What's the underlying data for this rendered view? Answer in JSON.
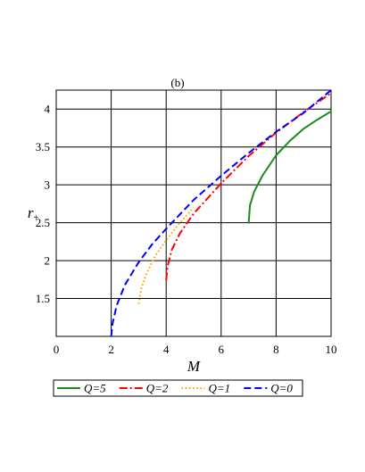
{
  "chart_data": {
    "type": "line",
    "title": "(b)",
    "xlabel": "M",
    "ylabel": "r+",
    "xlim": [
      0,
      10
    ],
    "ylim": [
      1,
      4.25
    ],
    "x_ticks": [
      "0",
      "2",
      "4",
      "6",
      "8",
      "10"
    ],
    "y_ticks": [
      "1.5",
      "2",
      "2.5",
      "3",
      "3.5",
      "4"
    ],
    "grid": true,
    "legend_position": "bottom",
    "series": [
      {
        "name": "Q=5",
        "color": "#1a8a1a",
        "style": "solid",
        "x": [
          7.0,
          7.05,
          7.2,
          7.5,
          8.0,
          8.5,
          9.0,
          9.5,
          10.0
        ],
        "y": [
          2.49,
          2.73,
          2.91,
          3.12,
          3.39,
          3.58,
          3.74,
          3.86,
          3.97
        ]
      },
      {
        "name": "Q=2",
        "color": "#ff0000",
        "style": "dashdot",
        "x": [
          4.0,
          4.05,
          4.2,
          4.5,
          5.0,
          6.0,
          7.0,
          8.0,
          9.0,
          10.0
        ],
        "y": [
          1.74,
          1.92,
          2.14,
          2.36,
          2.62,
          3.02,
          3.38,
          3.69,
          3.96,
          4.21
        ]
      },
      {
        "name": "Q=1",
        "color": "#ffa500",
        "style": "dotted",
        "x": [
          3.0,
          3.1,
          3.3,
          3.6,
          4.0,
          4.5,
          5.0
        ],
        "y": [
          1.43,
          1.64,
          1.84,
          2.06,
          2.27,
          2.5,
          2.7
        ]
      },
      {
        "name": "Q=0",
        "color": "#0000ff",
        "style": "dashed",
        "x": [
          2.0,
          2.05,
          2.2,
          2.5,
          3.0,
          3.5,
          4.0,
          5.0,
          6.0,
          7.0,
          8.0,
          9.0,
          10.0
        ],
        "y": [
          1.0,
          1.17,
          1.41,
          1.68,
          1.98,
          2.22,
          2.42,
          2.8,
          3.12,
          3.42,
          3.7,
          3.95,
          4.25
        ]
      }
    ]
  }
}
